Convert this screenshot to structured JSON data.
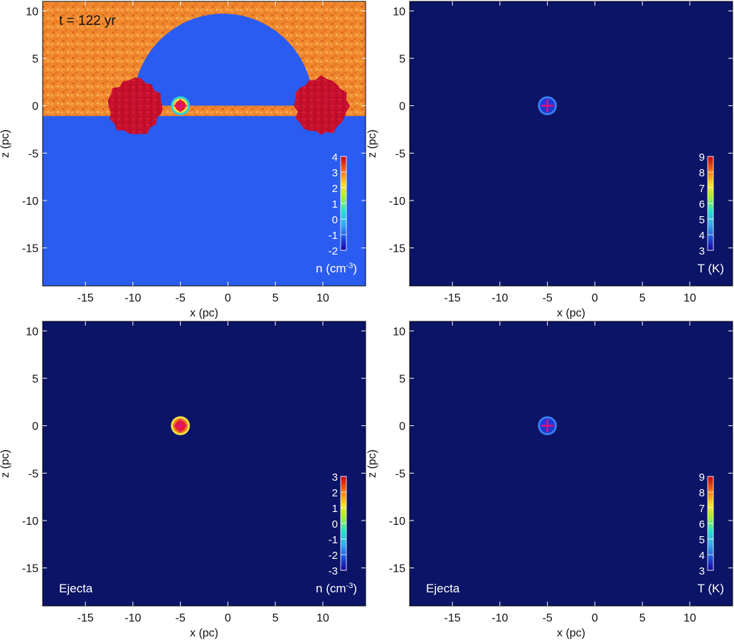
{
  "figure": {
    "time_label": "t = 122 yr"
  },
  "chart_data": [
    {
      "type": "heatmap",
      "panel": "top-left",
      "quantity": "density",
      "xlabel": "x (pc)",
      "ylabel": "z (pc)",
      "xlim": [
        -19.5,
        14.5
      ],
      "ylim": [
        -19,
        11
      ],
      "xticks": [
        -15,
        -10,
        -5,
        0,
        5,
        10
      ],
      "yticks": [
        10,
        5,
        0,
        -5,
        -10,
        -15
      ],
      "show_xlabel": true,
      "show_ylabel": true,
      "colorbar": {
        "title": "n (cm",
        "title_sup": "-3",
        "title_end": ")",
        "min": -2,
        "max": 4,
        "ticks": [
          4,
          3,
          2,
          1,
          0,
          -1,
          -2
        ],
        "ticks_first": 4
      },
      "background_color": "#2b5cf2",
      "features": {
        "ambient_medium_color": "#f08a2e",
        "cavity_color": "#2b5cf2",
        "clump_color": "#c8102e",
        "clumps": [
          {
            "center": [
              -9.8,
              -0.1
            ],
            "radius": 2.8
          },
          {
            "center": [
              9.8,
              0.0
            ],
            "radius": 2.8
          }
        ],
        "source": {
          "center": [
            -5,
            0
          ],
          "radius": 1.0,
          "palette": [
            "#2ad0d8",
            "#f0e040",
            "#e0202a"
          ]
        },
        "bubble": {
          "center": [
            -0.5,
            0
          ],
          "radius": 9.5
        },
        "interface_z": -1.1
      },
      "marker": {
        "type": "cross",
        "position": [
          -5,
          0
        ],
        "color": "#e8107a"
      }
    },
    {
      "type": "heatmap",
      "panel": "top-right",
      "quantity": "temperature",
      "xlabel": "x (pc)",
      "ylabel": "z (pc)",
      "xlim": [
        -19.5,
        14.5
      ],
      "ylim": [
        -19,
        11
      ],
      "xticks": [
        -15,
        -10,
        -5,
        0,
        5,
        10
      ],
      "yticks": [
        10,
        5,
        0,
        -5,
        -10,
        -15
      ],
      "show_xlabel": true,
      "show_ylabel": true,
      "colorbar": {
        "title": "T (K)",
        "title_sup": "",
        "title_end": "",
        "min": 3,
        "max": 9,
        "ticks": [
          9,
          8,
          7,
          6,
          5,
          4,
          3
        ],
        "ticks_first": 9
      },
      "background_color": "#0b1466",
      "features": {
        "source": {
          "center": [
            -5,
            0
          ],
          "radius": 1.0,
          "palette": [
            "#3c7cf0",
            "#1a3ad8"
          ]
        }
      },
      "marker": {
        "type": "cross",
        "position": [
          -5,
          0
        ],
        "color": "#e8107a"
      }
    },
    {
      "type": "heatmap",
      "panel": "bottom-left",
      "quantity": "ejecta density",
      "label": "Ejecta",
      "xlabel": "x (pc)",
      "ylabel": "z (pc)",
      "xlim": [
        -19.5,
        14.5
      ],
      "ylim": [
        -19,
        11
      ],
      "xticks": [
        -15,
        -10,
        -5,
        0,
        5,
        10
      ],
      "yticks": [
        10,
        5,
        0,
        -5,
        -10,
        -15
      ],
      "show_xlabel": true,
      "show_ylabel": true,
      "colorbar": {
        "title": "n (cm",
        "title_sup": "-3",
        "title_end": ")",
        "min": -3,
        "max": 3,
        "ticks": [
          3,
          2,
          1,
          0,
          -1,
          -2,
          -3
        ],
        "ticks_first": 3
      },
      "background_color": "#0b1466",
      "features": {
        "source": {
          "center": [
            -5,
            0
          ],
          "radius": 1.0,
          "palette": [
            "#f0e040",
            "#f07a20",
            "#e0202a"
          ]
        }
      },
      "marker": {
        "type": "cross",
        "position": [
          -5,
          0
        ],
        "color": "#e8107a"
      }
    },
    {
      "type": "heatmap",
      "panel": "bottom-right",
      "quantity": "ejecta temperature",
      "label": "Ejecta",
      "xlabel": "x (pc)",
      "ylabel": "z (pc)",
      "xlim": [
        -19.5,
        14.5
      ],
      "ylim": [
        -19,
        11
      ],
      "xticks": [
        -15,
        -10,
        -5,
        0,
        5,
        10
      ],
      "yticks": [
        10,
        5,
        0,
        -5,
        -10,
        -15
      ],
      "show_xlabel": true,
      "show_ylabel": true,
      "colorbar": {
        "title": "T (K)",
        "title_sup": "",
        "title_end": "",
        "min": 3,
        "max": 9,
        "ticks": [
          9,
          8,
          7,
          6,
          5,
          4,
          3
        ],
        "ticks_first": 9
      },
      "background_color": "#0b1466",
      "features": {
        "source": {
          "center": [
            -5,
            0
          ],
          "radius": 1.0,
          "palette": [
            "#3c7cf0",
            "#1a3ad8"
          ]
        }
      },
      "marker": {
        "type": "cross",
        "position": [
          -5,
          0
        ],
        "color": "#e8107a"
      }
    }
  ]
}
